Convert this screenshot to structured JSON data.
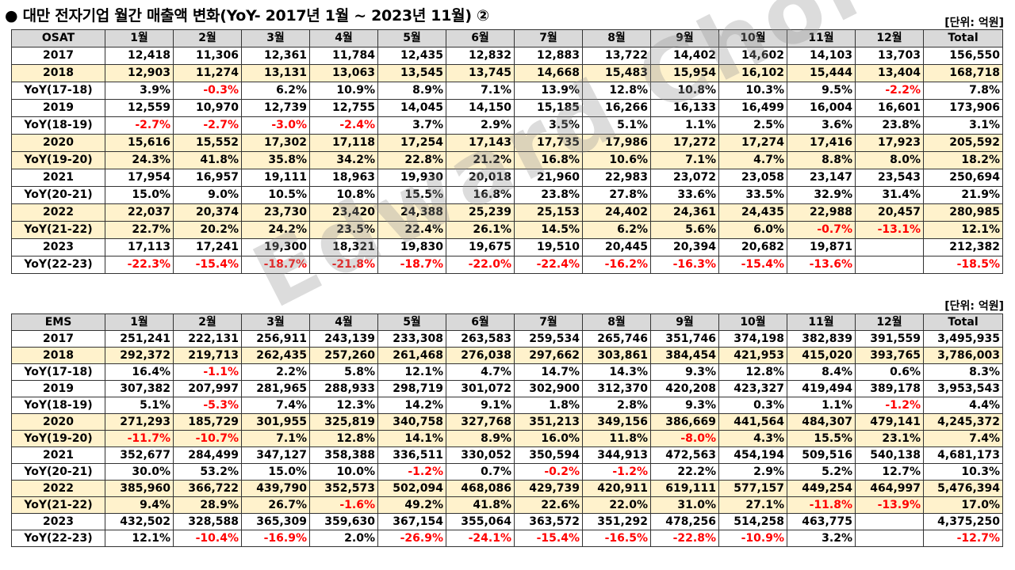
{
  "title": "● 대만 전자기업 월간 매출액 변화(YoY- 2017년 1월 ~  2023년 11월) ②",
  "unit_label": "[단위: 억원]",
  "watermark": "Edward Choi",
  "colors": {
    "negative": "#ff0000",
    "header_bg": "#d9d9d9",
    "highlight_bg": "#fff2cc"
  },
  "osat": {
    "header": [
      "OSAT",
      "1월",
      "2월",
      "3월",
      "4월",
      "5월",
      "6월",
      "7월",
      "8월",
      "9월",
      "10월",
      "11월",
      "12월",
      "Total"
    ],
    "rows": [
      {
        "type": "year",
        "label": "2017",
        "values": [
          "12,418",
          "11,306",
          "12,361",
          "11,784",
          "12,435",
          "12,832",
          "12,883",
          "13,722",
          "14,402",
          "14,602",
          "14,103",
          "13,703",
          "156,550"
        ]
      },
      {
        "type": "year",
        "label": "2018",
        "values": [
          "12,903",
          "11,274",
          "13,131",
          "13,063",
          "13,545",
          "13,745",
          "14,668",
          "15,483",
          "15,954",
          "16,102",
          "15,444",
          "13,404",
          "168,718"
        ]
      },
      {
        "type": "yoy",
        "label": "YoY(17-18)",
        "values": [
          "3.9%",
          "-0.3%",
          "6.2%",
          "10.9%",
          "8.9%",
          "7.1%",
          "13.9%",
          "12.8%",
          "10.8%",
          "10.3%",
          "9.5%",
          "-2.2%",
          "7.8%"
        ]
      },
      {
        "type": "year",
        "label": "2019",
        "values": [
          "12,559",
          "10,970",
          "12,739",
          "12,755",
          "14,045",
          "14,150",
          "15,185",
          "16,266",
          "16,133",
          "16,499",
          "16,004",
          "16,601",
          "173,906"
        ]
      },
      {
        "type": "yoy",
        "label": "YoY(18-19)",
        "values": [
          "-2.7%",
          "-2.7%",
          "-3.0%",
          "-2.4%",
          "3.7%",
          "2.9%",
          "3.5%",
          "5.1%",
          "1.1%",
          "2.5%",
          "3.6%",
          "23.8%",
          "3.1%"
        ]
      },
      {
        "type": "year",
        "label": "2020",
        "values": [
          "15,616",
          "15,552",
          "17,302",
          "17,118",
          "17,254",
          "17,143",
          "17,735",
          "17,986",
          "17,272",
          "17,274",
          "17,416",
          "17,923",
          "205,592"
        ]
      },
      {
        "type": "yoy",
        "label": "YoY(19-20)",
        "values": [
          "24.3%",
          "41.8%",
          "35.8%",
          "34.2%",
          "22.8%",
          "21.2%",
          "16.8%",
          "10.6%",
          "7.1%",
          "4.7%",
          "8.8%",
          "8.0%",
          "18.2%"
        ]
      },
      {
        "type": "year",
        "label": "2021",
        "values": [
          "17,954",
          "16,957",
          "19,111",
          "18,963",
          "19,930",
          "20,018",
          "21,960",
          "22,983",
          "23,072",
          "23,058",
          "23,147",
          "23,543",
          "250,694"
        ]
      },
      {
        "type": "yoy",
        "label": "YoY(20-21)",
        "values": [
          "15.0%",
          "9.0%",
          "10.5%",
          "10.8%",
          "15.5%",
          "16.8%",
          "23.8%",
          "27.8%",
          "33.6%",
          "33.5%",
          "32.9%",
          "31.4%",
          "21.9%"
        ]
      },
      {
        "type": "year",
        "label": "2022",
        "values": [
          "22,037",
          "20,374",
          "23,730",
          "23,420",
          "24,388",
          "25,239",
          "25,153",
          "24,402",
          "24,361",
          "24,435",
          "22,988",
          "20,457",
          "280,985"
        ]
      },
      {
        "type": "yoy",
        "label": "YoY(21-22)",
        "values": [
          "22.7%",
          "20.2%",
          "24.2%",
          "23.5%",
          "22.4%",
          "26.1%",
          "14.5%",
          "6.2%",
          "5.6%",
          "6.0%",
          "-0.7%",
          "-13.1%",
          "12.1%"
        ]
      },
      {
        "type": "year",
        "label": "2023",
        "values": [
          "17,113",
          "17,241",
          "19,300",
          "18,321",
          "19,830",
          "19,675",
          "19,510",
          "20,445",
          "20,394",
          "20,682",
          "19,871",
          "",
          "212,382"
        ]
      },
      {
        "type": "yoy",
        "label": "YoY(22-23)",
        "values": [
          "-22.3%",
          "-15.4%",
          "-18.7%",
          "-21.8%",
          "-18.7%",
          "-22.0%",
          "-22.4%",
          "-16.2%",
          "-16.3%",
          "-15.4%",
          "-13.6%",
          "",
          "-18.5%"
        ]
      }
    ]
  },
  "ems": {
    "header": [
      "EMS",
      "1월",
      "2월",
      "3월",
      "4월",
      "5월",
      "6월",
      "7월",
      "8월",
      "9월",
      "10월",
      "11월",
      "12월",
      "Total"
    ],
    "rows": [
      {
        "type": "year",
        "label": "2017",
        "values": [
          "251,241",
          "222,131",
          "256,911",
          "243,139",
          "233,308",
          "263,583",
          "259,534",
          "265,746",
          "351,746",
          "374,198",
          "382,839",
          "391,559",
          "3,495,935"
        ]
      },
      {
        "type": "year",
        "label": "2018",
        "values": [
          "292,372",
          "219,713",
          "262,435",
          "257,260",
          "261,468",
          "276,038",
          "297,662",
          "303,861",
          "384,454",
          "421,953",
          "415,020",
          "393,765",
          "3,786,003"
        ]
      },
      {
        "type": "yoy",
        "label": "YoY(17-18)",
        "values": [
          "16.4%",
          "-1.1%",
          "2.2%",
          "5.8%",
          "12.1%",
          "4.7%",
          "14.7%",
          "14.3%",
          "9.3%",
          "12.8%",
          "8.4%",
          "0.6%",
          "8.3%"
        ]
      },
      {
        "type": "year",
        "label": "2019",
        "values": [
          "307,382",
          "207,997",
          "281,965",
          "288,933",
          "298,719",
          "301,072",
          "302,900",
          "312,370",
          "420,208",
          "423,327",
          "419,494",
          "389,178",
          "3,953,543"
        ]
      },
      {
        "type": "yoy",
        "label": "YoY(18-19)",
        "values": [
          "5.1%",
          "-5.3%",
          "7.4%",
          "12.3%",
          "14.2%",
          "9.1%",
          "1.8%",
          "2.8%",
          "9.3%",
          "0.3%",
          "1.1%",
          "-1.2%",
          "4.4%"
        ]
      },
      {
        "type": "year",
        "label": "2020",
        "values": [
          "271,293",
          "185,729",
          "301,955",
          "325,819",
          "340,758",
          "327,768",
          "351,213",
          "349,156",
          "386,669",
          "441,564",
          "484,307",
          "479,141",
          "4,245,372"
        ]
      },
      {
        "type": "yoy",
        "label": "YoY(19-20)",
        "values": [
          "-11.7%",
          "-10.7%",
          "7.1%",
          "12.8%",
          "14.1%",
          "8.9%",
          "16.0%",
          "11.8%",
          "-8.0%",
          "4.3%",
          "15.5%",
          "23.1%",
          "7.4%"
        ]
      },
      {
        "type": "year",
        "label": "2021",
        "values": [
          "352,677",
          "284,499",
          "347,127",
          "358,388",
          "336,511",
          "330,052",
          "350,594",
          "344,913",
          "472,563",
          "454,194",
          "509,516",
          "540,138",
          "4,681,173"
        ]
      },
      {
        "type": "yoy",
        "label": "YoY(20-21)",
        "values": [
          "30.0%",
          "53.2%",
          "15.0%",
          "10.0%",
          "-1.2%",
          "0.7%",
          "-0.2%",
          "-1.2%",
          "22.2%",
          "2.9%",
          "5.2%",
          "12.7%",
          "10.3%"
        ]
      },
      {
        "type": "year",
        "label": "2022",
        "values": [
          "385,960",
          "366,722",
          "439,790",
          "352,573",
          "502,094",
          "468,086",
          "429,739",
          "420,911",
          "619,111",
          "577,157",
          "449,254",
          "464,997",
          "5,476,394"
        ]
      },
      {
        "type": "yoy",
        "label": "YoY(21-22)",
        "values": [
          "9.4%",
          "28.9%",
          "26.7%",
          "-1.6%",
          "49.2%",
          "41.8%",
          "22.6%",
          "22.0%",
          "31.0%",
          "27.1%",
          "-11.8%",
          "-13.9%",
          "17.0%"
        ]
      },
      {
        "type": "year",
        "label": "2023",
        "values": [
          "432,502",
          "328,588",
          "365,309",
          "359,630",
          "367,154",
          "355,064",
          "363,572",
          "351,292",
          "478,256",
          "514,258",
          "463,775",
          "",
          "4,375,250"
        ]
      },
      {
        "type": "yoy",
        "label": "YoY(22-23)",
        "values": [
          "12.1%",
          "-10.4%",
          "-16.9%",
          "2.0%",
          "-26.9%",
          "-24.1%",
          "-15.4%",
          "-16.5%",
          "-22.8%",
          "-10.9%",
          "3.2%",
          "",
          "-12.7%"
        ]
      }
    ]
  }
}
